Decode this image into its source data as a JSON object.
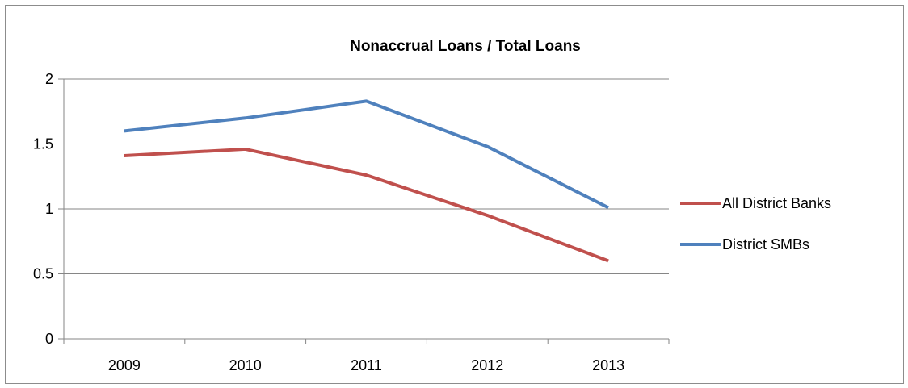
{
  "chart_data": {
    "type": "line",
    "title": "Nonaccrual Loans / Total Loans",
    "categories": [
      "2009",
      "2010",
      "2011",
      "2012",
      "2013"
    ],
    "series": [
      {
        "name": "All District Banks",
        "values": [
          1.41,
          1.46,
          1.26,
          0.95,
          0.6
        ],
        "color": "#c0504d"
      },
      {
        "name": "District SMBs",
        "values": [
          1.6,
          1.7,
          1.83,
          1.48,
          1.01
        ],
        "color": "#4f81bd"
      }
    ],
    "ylim": [
      0,
      2
    ],
    "yticks": [
      "0",
      "0.5",
      "1",
      "1.5",
      "2"
    ],
    "grid": true,
    "legend": "right"
  }
}
